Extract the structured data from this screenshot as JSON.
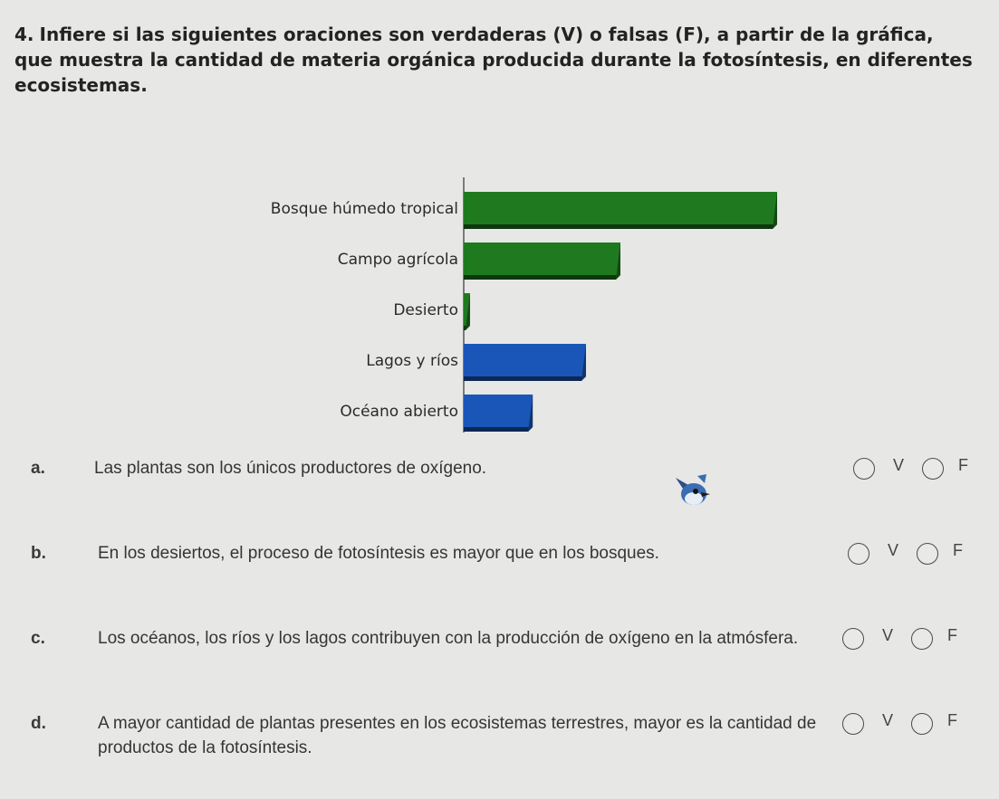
{
  "question": {
    "number": "4.",
    "text": "Infiere si las siguientes oraciones son verdaderas (V) o falsas (F), a partir de la gráfica, que muestra la cantidad de materia orgánica producida durante la fotosíntesis, en diferentes ecosistemas."
  },
  "chart_data": {
    "type": "bar",
    "orientation": "horizontal",
    "categories": [
      "Bosque húmedo tropical",
      "Campo agrícola",
      "Desierto",
      "Lagos y ríos",
      "Océano abierto"
    ],
    "values": [
      100,
      50,
      2,
      39,
      22
    ],
    "bar_colors": [
      "#1f7a1f",
      "#1f7a1f",
      "#1f7a1f",
      "#1a56b8",
      "#1a56b8"
    ],
    "title": "",
    "xlabel": "",
    "ylabel": "",
    "xlim": [
      0,
      100
    ],
    "grid": false,
    "legend": "none"
  },
  "statements": [
    {
      "letter": "a.",
      "text": "Las plantas son los únicos productores de oxígeno.",
      "opt_v": "V",
      "opt_f": "F"
    },
    {
      "letter": "b.",
      "text": "En los desiertos, el proceso de fotosíntesis es mayor que en los bosques.",
      "opt_v": "V",
      "opt_f": "F"
    },
    {
      "letter": "c.",
      "text": "Los océanos, los ríos y los lagos contribuyen con la producción de oxígeno en la atmósfera.",
      "opt_v": "V",
      "opt_f": "F"
    },
    {
      "letter": "d.",
      "text": "A mayor cantidad de plantas presentes en los ecosistemas terrestres, mayor es la cantidad de productos de la fotosíntesis.",
      "opt_v": "V",
      "opt_f": "F"
    }
  ],
  "icons": {
    "mascot": "bird-mascot-icon"
  },
  "colors": {
    "background": "#e7e7e5",
    "green_bar": "#1f7a1f",
    "blue_bar": "#1a56b8"
  }
}
